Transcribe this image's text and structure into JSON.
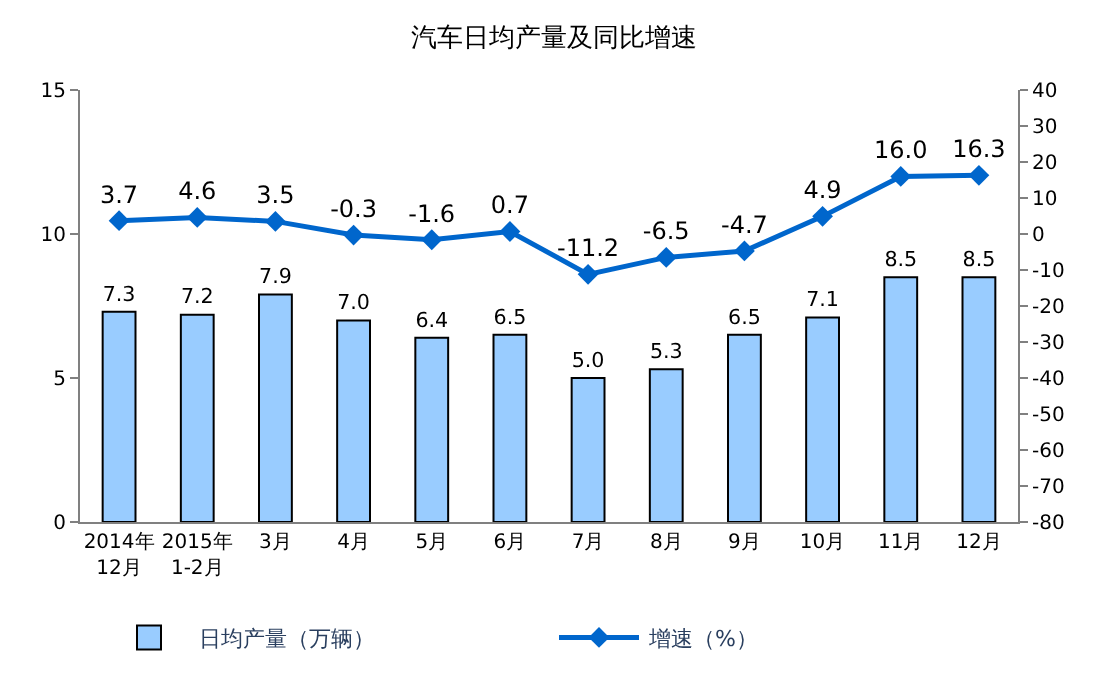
{
  "chart_data": {
    "type": "bar",
    "title": "汽车日均产量及同比增速",
    "categories": [
      "2014年\n12月",
      "2015年\n1-2月",
      "3月",
      "4月",
      "5月",
      "6月",
      "7月",
      "8月",
      "9月",
      "10月",
      "11月",
      "12月"
    ],
    "series": [
      {
        "name": "日均产量（万辆）",
        "color": "#99ccff",
        "values": [
          7.3,
          7.2,
          7.9,
          7.0,
          6.4,
          6.5,
          5.0,
          5.3,
          6.5,
          7.1,
          8.5,
          8.5
        ],
        "value_labels": [
          "7.3",
          "7.2",
          "7.9",
          "7.0",
          "6.4",
          "6.5",
          "5.0",
          "5.3",
          "6.5",
          "7.1",
          "8.5",
          "8.5"
        ]
      },
      {
        "name": "增速（%）",
        "type": "line",
        "axis": "y2",
        "color": "#0066cc",
        "marker": "diamond",
        "values": [
          3.7,
          4.6,
          3.5,
          -0.3,
          -1.6,
          0.7,
          -11.2,
          -6.5,
          -4.7,
          4.9,
          16.0,
          16.3
        ],
        "value_labels": [
          "3.7",
          "4.6",
          "3.5",
          "-0.3",
          "-1.6",
          "0.7",
          "-11.2",
          "-6.5",
          "-4.7",
          "4.9",
          "16.0",
          "16.3"
        ]
      }
    ],
    "ylim": [
      0,
      15
    ],
    "yticks": [
      0,
      5,
      10,
      15
    ],
    "y2lim": [
      -80,
      40
    ],
    "y2ticks": [
      -80,
      -70,
      -60,
      -50,
      -40,
      -30,
      -20,
      -10,
      0,
      10,
      20,
      30,
      40
    ],
    "legend": "bottom"
  }
}
